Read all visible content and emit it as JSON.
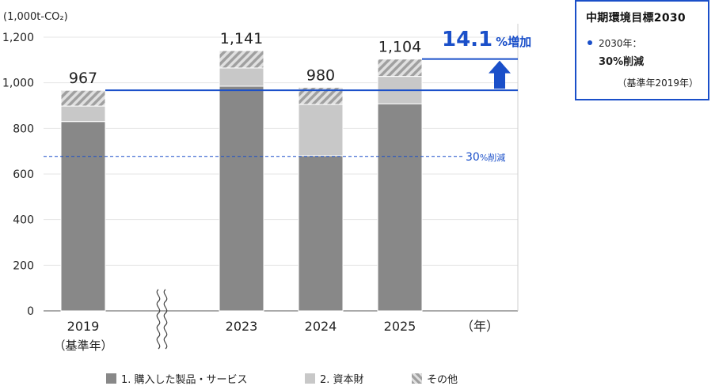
{
  "chart_data": {
    "type": "bar",
    "stacked": true,
    "unit_label": "(1,000t-CO₂)",
    "categories": [
      "2019",
      "2023",
      "2024",
      "2025"
    ],
    "category_sublabels": [
      "（基準年）",
      "",
      "",
      ""
    ],
    "x_axis_unit": "（年）",
    "ylim": [
      0,
      1250
    ],
    "yticks": [
      0,
      200,
      400,
      600,
      800,
      1000,
      1200
    ],
    "ytick_labels": [
      "0",
      "200",
      "400",
      "600",
      "800",
      "1,000",
      "1,200"
    ],
    "series": [
      {
        "name": "1. 購入した製品・サービス",
        "color": "#888888",
        "pattern": "solid",
        "values": [
          830,
          985,
          680,
          908
        ]
      },
      {
        "name": "2. 資本財",
        "color": "#c8c8c8",
        "pattern": "solid",
        "values": [
          68,
          80,
          225,
          120
        ]
      },
      {
        "name": "その他",
        "color": "#a6a6a6",
        "pattern": "hatch",
        "values": [
          69,
          76,
          75,
          76
        ]
      }
    ],
    "totals": [
      967,
      1141,
      980,
      1104
    ],
    "total_labels": [
      "967",
      "1,141",
      "980",
      "1,104"
    ],
    "axis_break": true,
    "reference_lines": [
      {
        "label_num": "30",
        "label_unit": "%削減",
        "value": 677,
        "color": "#1a4fc9",
        "style": "dashed"
      },
      {
        "value": 967,
        "color": "#1a4fc9",
        "style": "solid"
      },
      {
        "value": 1104,
        "color": "#1a4fc9",
        "style": "solid"
      }
    ],
    "increase_annotation": {
      "value_text": "14.1",
      "unit_text": "%増加",
      "color": "#1a4fc9"
    },
    "legend_position": "bottom"
  },
  "goal_box": {
    "title": "中期環境目標2030",
    "year_label": "2030年：",
    "target": "30%削減",
    "note": "（基準年2019年）",
    "accent_color": "#1a4fc9"
  }
}
